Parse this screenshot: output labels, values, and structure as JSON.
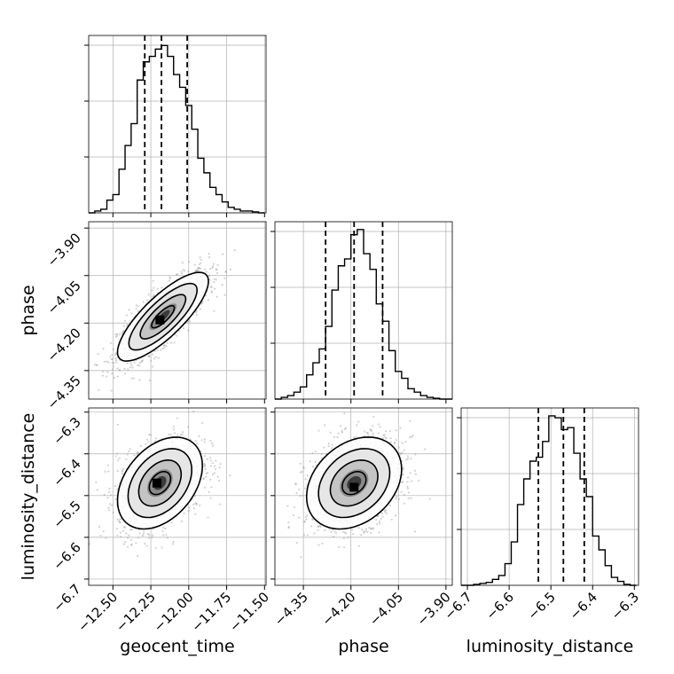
{
  "chart_data": {
    "type": "corner",
    "parameters": [
      "geocent_time",
      "phase",
      "luminosity_distance"
    ],
    "colors": {
      "line": "#000000",
      "grid": "#b0b0b0",
      "scatter": "#9a9a9a"
    },
    "quantiles": {
      "geocent_time": [
        -12.29,
        -12.18,
        -12.01
      ],
      "phase": [
        -4.28,
        -4.19,
        -4.1
      ],
      "luminosity_distance": [
        -6.53,
        -6.47,
        -6.42
      ]
    },
    "ticks": {
      "geocent_time": {
        "values": [
          -12.5,
          -12.25,
          -12.0,
          -11.75,
          -11.5
        ],
        "labels": [
          "−12.50",
          "−12.25",
          "−12.00",
          "−11.75",
          "−11.50"
        ],
        "range": [
          -12.66,
          -11.49
        ]
      },
      "phase": {
        "values": [
          -4.35,
          -4.2,
          -4.05,
          -3.9
        ],
        "labels": [
          "−4.35",
          "−4.20",
          "−4.05",
          "−3.90"
        ],
        "range": [
          -4.44,
          -3.88
        ]
      },
      "luminosity_distance": {
        "values": [
          -6.7,
          -6.6,
          -6.5,
          -6.4,
          -6.3
        ],
        "labels": [
          "−6.7",
          "−6.6",
          "−6.5",
          "−6.4",
          "−6.3"
        ],
        "range": [
          -6.715,
          -6.29
        ]
      }
    },
    "histograms": {
      "geocent_time": {
        "edges": [
          -12.66,
          -12.62,
          -12.58,
          -12.54,
          -12.5,
          -12.46,
          -12.42,
          -12.38,
          -12.34,
          -12.3,
          -12.26,
          -12.22,
          -12.18,
          -12.14,
          -12.1,
          -12.06,
          -12.02,
          -11.98,
          -11.94,
          -11.9,
          -11.86,
          -11.82,
          -11.78,
          -11.74,
          -11.7,
          -11.66,
          -11.62,
          -11.58,
          -11.54,
          -11.5
        ],
        "counts": [
          0,
          2,
          4,
          14,
          20,
          48,
          74,
          98,
          146,
          166,
          172,
          180,
          184,
          172,
          152,
          138,
          118,
          92,
          60,
          44,
          28,
          20,
          12,
          6,
          4,
          2,
          2,
          1,
          0
        ],
        "ymax": 195
      },
      "phase": {
        "edges": [
          -4.44,
          -4.42,
          -4.4,
          -4.38,
          -4.36,
          -4.34,
          -4.32,
          -4.3,
          -4.28,
          -4.26,
          -4.24,
          -4.22,
          -4.2,
          -4.18,
          -4.16,
          -4.14,
          -4.12,
          -4.1,
          -4.08,
          -4.06,
          -4.04,
          -4.02,
          -4.0,
          -3.98,
          -3.96,
          -3.94,
          -3.92,
          -3.9,
          -3.88
        ],
        "counts": [
          0,
          2,
          4,
          8,
          14,
          28,
          42,
          58,
          84,
          126,
          154,
          162,
          190,
          196,
          168,
          150,
          110,
          90,
          56,
          32,
          24,
          12,
          8,
          4,
          2,
          1,
          0,
          0
        ],
        "ymax": 205
      },
      "luminosity_distance": {
        "edges": [
          -6.715,
          -6.7,
          -6.685,
          -6.67,
          -6.655,
          -6.64,
          -6.625,
          -6.61,
          -6.595,
          -6.58,
          -6.565,
          -6.55,
          -6.535,
          -6.52,
          -6.505,
          -6.49,
          -6.475,
          -6.46,
          -6.445,
          -6.43,
          -6.415,
          -6.4,
          -6.385,
          -6.37,
          -6.355,
          -6.34,
          -6.325,
          -6.31,
          -6.295
        ],
        "counts": [
          0,
          0,
          1,
          2,
          3,
          6,
          10,
          22,
          44,
          82,
          108,
          126,
          130,
          146,
          172,
          170,
          158,
          160,
          134,
          108,
          90,
          50,
          36,
          20,
          8,
          4,
          1,
          0
        ],
        "ymax": 180
      }
    },
    "joint_2d": [
      {
        "x": "geocent_time",
        "y": "phase",
        "mean": [
          -12.17,
          -4.18
        ],
        "sd": [
          0.15,
          0.07
        ],
        "rho": 0.8,
        "contours": [
          0.5,
          1.0,
          1.5,
          2.0
        ],
        "peak": [
          -12.19,
          -4.19
        ]
      },
      {
        "x": "geocent_time",
        "y": "luminosity_distance",
        "mean": [
          -12.19,
          -6.47
        ],
        "sd": [
          0.14,
          0.055
        ],
        "rho": 0.38,
        "contours": [
          0.5,
          1.0,
          1.5,
          2.0
        ],
        "peak": [
          -12.21,
          -6.47
        ]
      },
      {
        "x": "phase",
        "y": "luminosity_distance",
        "mean": [
          -4.19,
          -6.47
        ],
        "sd": [
          0.075,
          0.055
        ],
        "rho": 0.3,
        "contours": [
          0.5,
          1.0,
          1.5,
          2.0
        ],
        "peak": [
          -4.19,
          -6.48
        ]
      }
    ]
  }
}
